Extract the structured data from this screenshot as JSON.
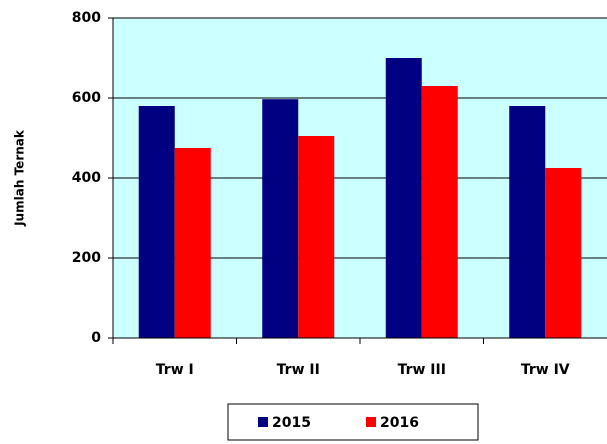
{
  "chart_data": {
    "type": "bar",
    "y_label": "Jumlah Ternak",
    "categories": [
      "Trw I",
      "Trw II",
      "Trw III",
      "Trw IV"
    ],
    "series": [
      {
        "name": "2015",
        "color": "#000080",
        "values": [
          580,
          597,
          700,
          580
        ]
      },
      {
        "name": "2016",
        "color": "#ff0000",
        "values": [
          475,
          505,
          630,
          425
        ]
      }
    ],
    "ylim": [
      0,
      800
    ],
    "yticks": [
      0,
      200,
      400,
      600,
      800
    ],
    "grid": true,
    "legend": "bottom",
    "background": "#ccffff"
  }
}
